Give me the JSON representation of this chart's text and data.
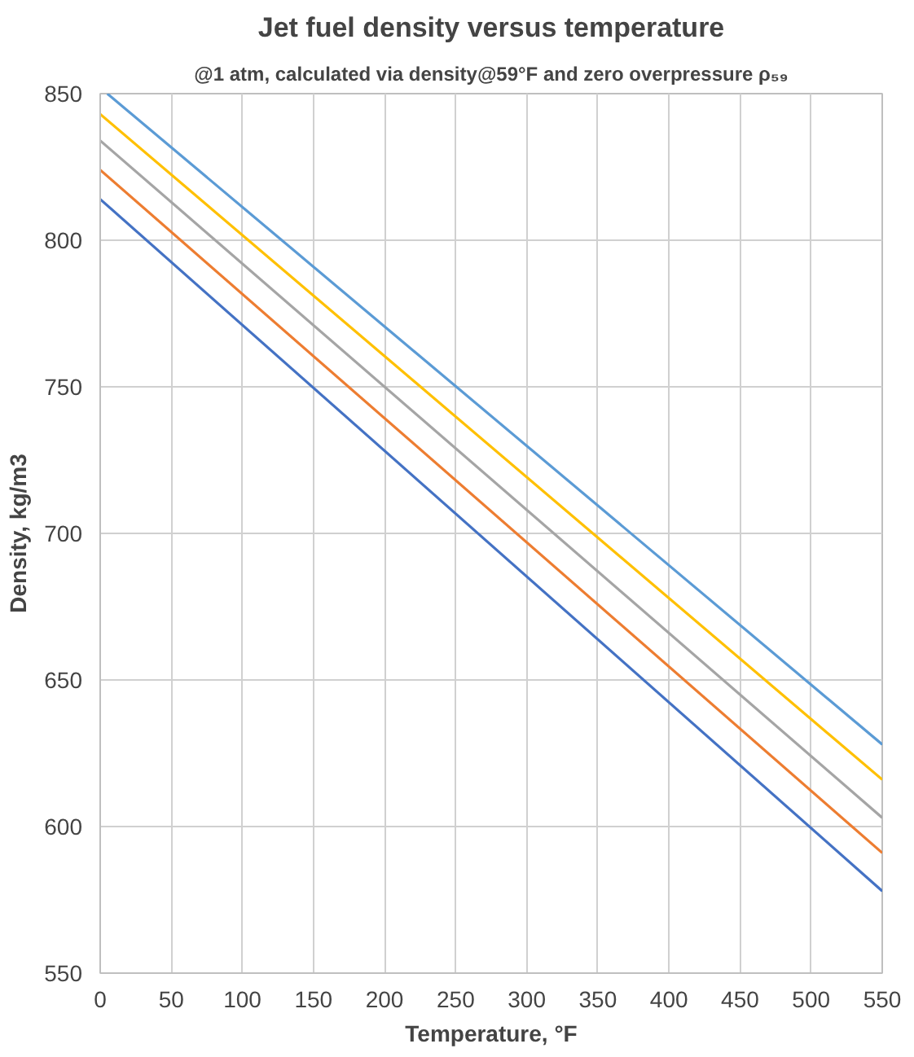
{
  "chart_data": {
    "type": "line",
    "title": "Jet fuel density versus temperature",
    "subtitle": "@1 atm, calculated via density@59°F and zero overpressure ρ₅₉",
    "xlabel": "Temperature, °F",
    "ylabel": "Density, kg/m3",
    "xlim": [
      0,
      550
    ],
    "ylim": [
      550,
      850
    ],
    "xticks": [
      0,
      50,
      100,
      150,
      200,
      250,
      300,
      350,
      400,
      450,
      500,
      550
    ],
    "yticks": [
      550,
      600,
      650,
      700,
      750,
      800,
      850
    ],
    "grid": true,
    "marker": "none",
    "line_style": "solid",
    "series": [
      {
        "color": "#4472c4",
        "x": [
          0,
          550
        ],
        "values": [
          814,
          578
        ]
      },
      {
        "color": "#ed7d31",
        "x": [
          0,
          550
        ],
        "values": [
          824,
          591
        ]
      },
      {
        "color": "#a5a5a5",
        "x": [
          0,
          550
        ],
        "values": [
          834,
          603
        ]
      },
      {
        "color": "#ffc000",
        "x": [
          0,
          550
        ],
        "values": [
          843,
          616
        ]
      },
      {
        "color": "#5b9bd5",
        "x": [
          5,
          550
        ],
        "values": [
          850,
          628
        ]
      }
    ]
  }
}
